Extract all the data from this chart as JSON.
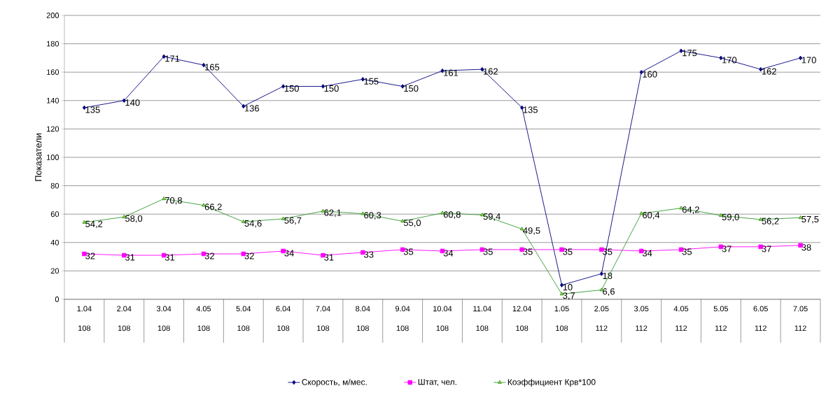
{
  "chart_data": {
    "type": "line",
    "ylabel": "Показатели",
    "categories": [
      "1.04\n108",
      "2.04\n108",
      "3.04\n108",
      "4.05\n108",
      "5.04\n108",
      "6.04\n108",
      "7.04\n108",
      "8.04\n108",
      "9.04\n108",
      "10.04\n108",
      "11.04\n108",
      "12.04\n108",
      "1.05\n108",
      "2.05\n112",
      "3.05\n112",
      "4.05\n112",
      "5.05\n112",
      "6.05\n112",
      "7.05\n112"
    ],
    "series": [
      {
        "name": "Скорость, м/мес.",
        "color": "#000080",
        "marker": "diamond",
        "values": [
          135,
          140,
          171,
          165,
          136,
          150,
          150,
          155,
          150,
          161,
          162,
          135,
          10,
          18,
          160,
          175,
          170,
          162,
          170
        ],
        "value_labels": [
          "135",
          "140",
          "171",
          "165",
          "136",
          "150",
          "150",
          "155",
          "150",
          "161",
          "162",
          "135",
          "10",
          "18",
          "160",
          "175",
          "170",
          "162",
          "170"
        ]
      },
      {
        "name": "Штат, чел.",
        "color": "#ff00ff",
        "marker": "square",
        "values": [
          32,
          31,
          31,
          32,
          32,
          34,
          31,
          33,
          35,
          34,
          35,
          35,
          35,
          35,
          34,
          35,
          37,
          37,
          38
        ],
        "value_labels": [
          "32",
          "31",
          "31",
          "32",
          "32",
          "34",
          "31",
          "33",
          "35",
          "34",
          "35",
          "35",
          "35",
          "35",
          "34",
          "35",
          "37",
          "37",
          "38"
        ]
      },
      {
        "name": "Коэффициент Крв*100",
        "color": "#339933",
        "marker": "triangle",
        "values": [
          54.2,
          58.0,
          70.8,
          66.2,
          54.6,
          56.7,
          62.1,
          60.3,
          55.0,
          60.8,
          59.4,
          49.5,
          3.7,
          6.6,
          60.4,
          64.2,
          59.0,
          56.2,
          57.5
        ],
        "value_labels": [
          "54,2",
          "58,0",
          "70,8",
          "66,2",
          "54,6",
          "56,7",
          "62,1",
          "60,3",
          "55,0",
          "60,8",
          "59,4",
          "49,5",
          "3,7",
          "6,6",
          "60,4",
          "64,2",
          "59,0",
          "56,2",
          "57,5"
        ]
      }
    ],
    "ylim": [
      0,
      200
    ],
    "yticks": [
      0,
      20,
      40,
      60,
      80,
      100,
      120,
      140,
      160,
      180,
      200
    ],
    "grid": "y",
    "legend": "bottom"
  }
}
